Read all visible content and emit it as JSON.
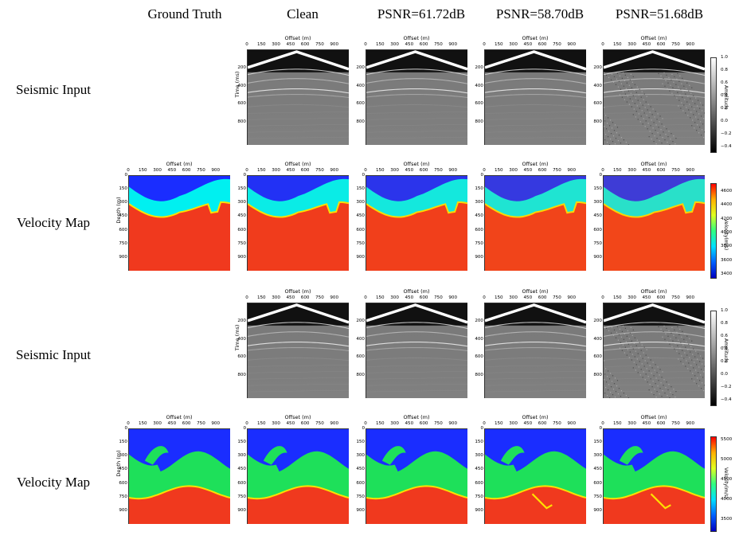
{
  "columns": [
    "Ground Truth",
    "Clean",
    "PSNR=61.72dB",
    "PSNR=58.70dB",
    "PSNR=51.68dB"
  ],
  "rows": [
    "Seismic Input",
    "Velocity Map",
    "Seismic Input",
    "Velocity Map"
  ],
  "axes": {
    "offset_label": "Offset (m)",
    "time_label": "Time (ms)",
    "depth_label": "Depth (m)",
    "offset_ticks": [
      "0",
      "150",
      "300",
      "450",
      "600",
      "750",
      "900"
    ],
    "time_ticks": [
      "200",
      "400",
      "600",
      "800"
    ],
    "depth_ticks": [
      "0",
      "150",
      "300",
      "450",
      "600",
      "750",
      "900"
    ]
  },
  "colorbars": {
    "amplitude": {
      "label": "Amplitude",
      "ticks": [
        "1.0",
        "0.8",
        "0.6",
        "0.4",
        "0.2",
        "0.0",
        "−0.2",
        "−0.4"
      ],
      "colormap": "gray"
    },
    "velocity_1": {
      "label": "Velocity(m/s)",
      "ticks": [
        "4600",
        "4400",
        "4200",
        "4000",
        "3800",
        "3600",
        "3400"
      ],
      "colormap": "jet"
    },
    "velocity_2": {
      "label": "Velocity(m/s)",
      "ticks": [
        "5500",
        "5000",
        "4500",
        "4000",
        "3500"
      ],
      "colormap": "jet"
    }
  },
  "colors": {
    "low_velocity": "#1a2dff",
    "mid_velocity_1": "#00f0f0",
    "mid_velocity_2": "#1ee05a",
    "high_velocity": "#f0391e",
    "background": "#ffffff"
  }
}
